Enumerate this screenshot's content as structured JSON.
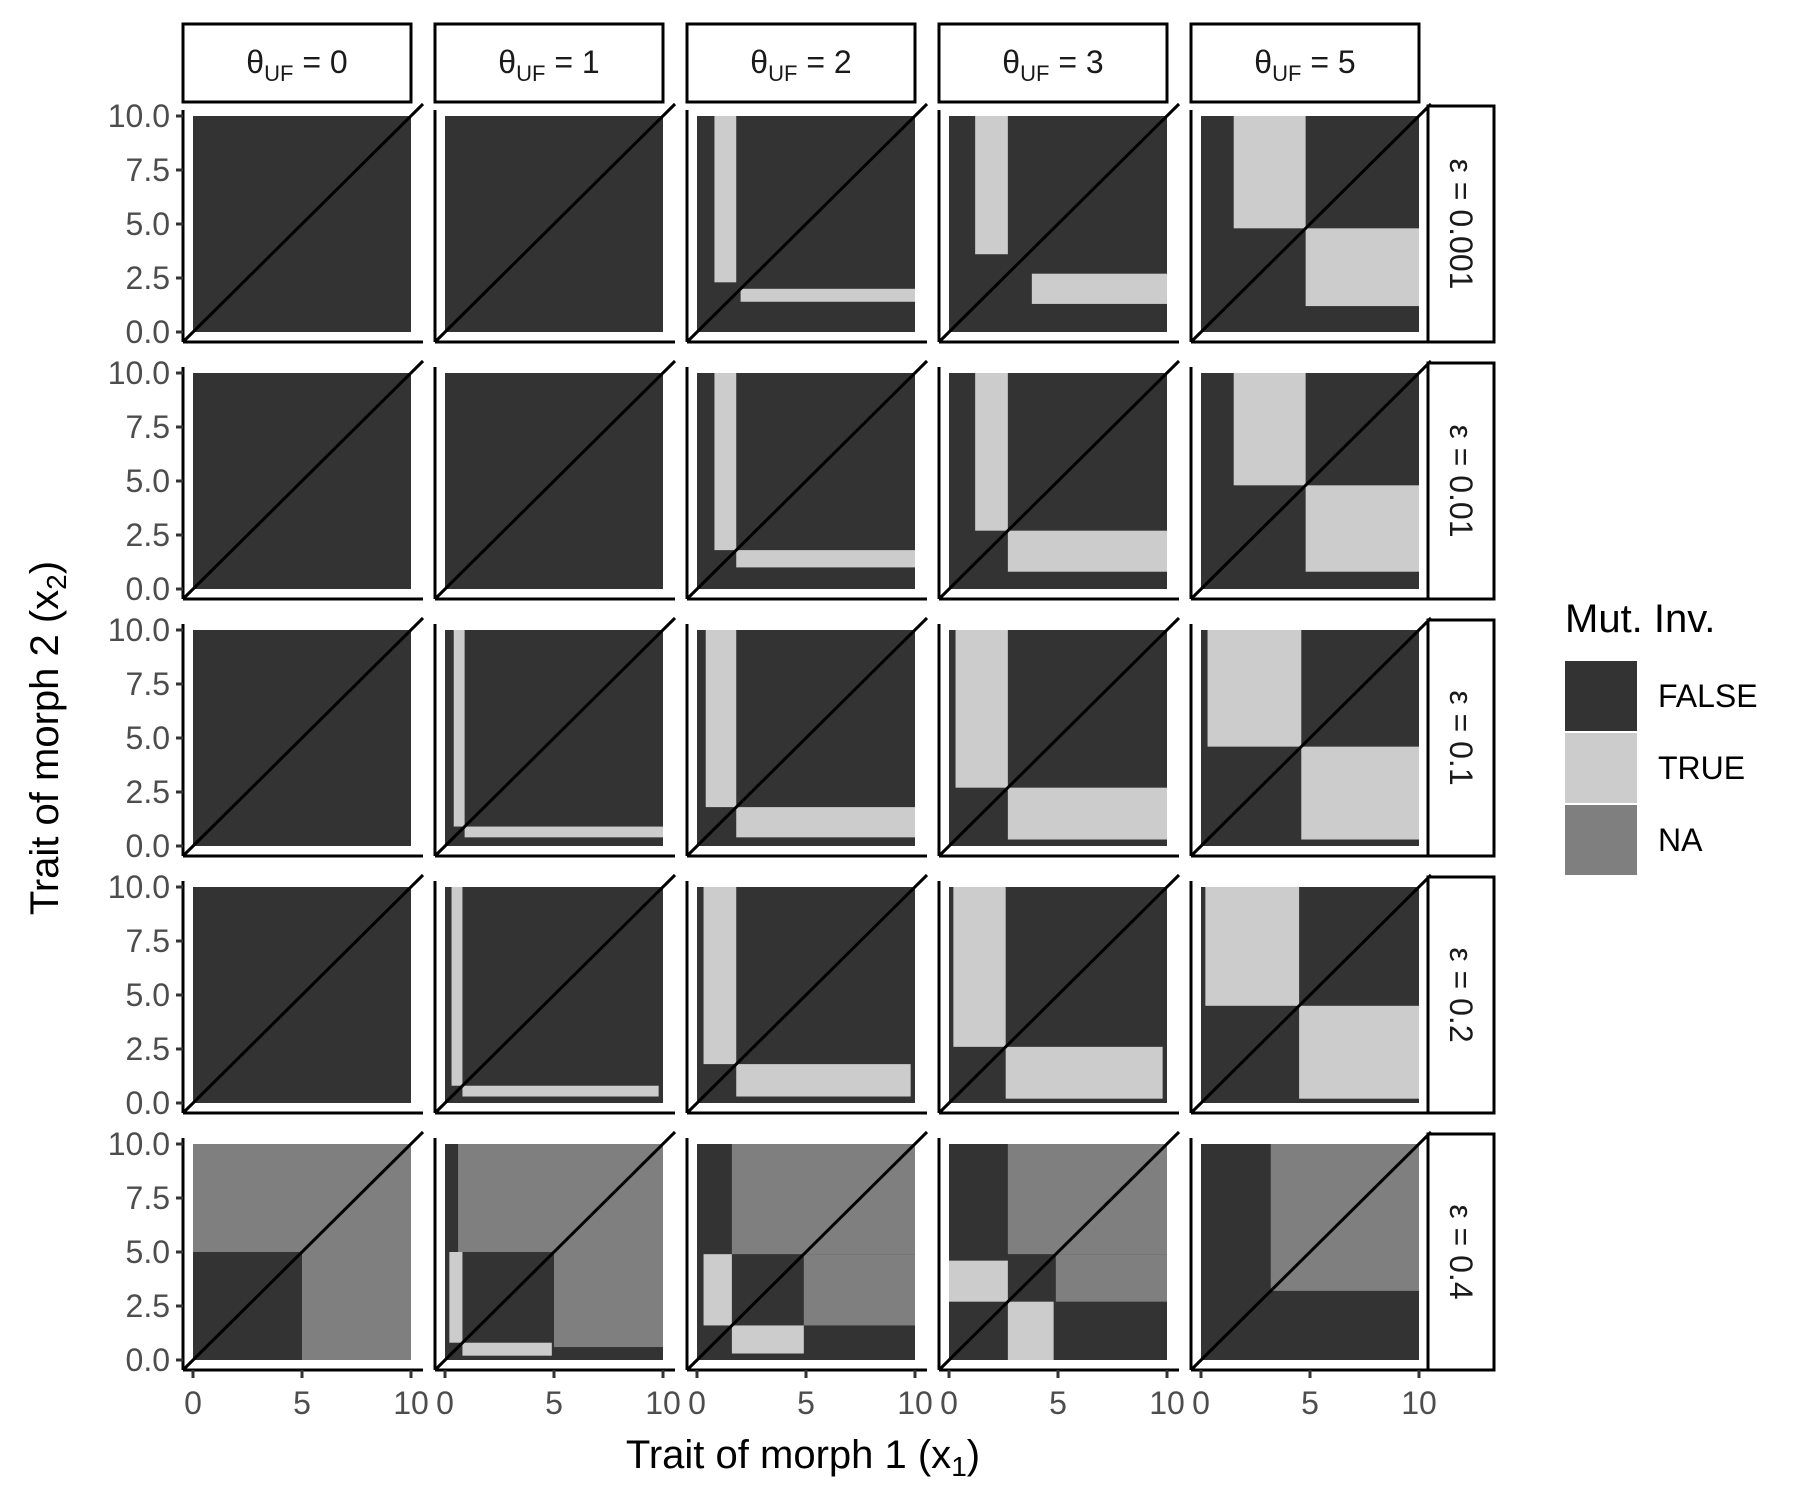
{
  "chart_data": {
    "type": "heatmap",
    "facet_columns": [
      "θUF = 0",
      "θUF = 1",
      "θUF = 2",
      "θUF = 3",
      "θUF = 5"
    ],
    "facet_column_symbol": "θ",
    "facet_column_subscript": "UF",
    "facet_column_values": [
      "0",
      "1",
      "2",
      "3",
      "5"
    ],
    "facet_rows": [
      "ε = 0.001",
      "ε = 0.01",
      "ε = 0.1",
      "ε = 0.2",
      "ε = 0.4"
    ],
    "xlabel": "Trait of morph 1 (x1)",
    "xlabel_main": "Trait of morph 1 (x",
    "xlabel_sub": "1",
    "xlabel_end": ")",
    "ylabel": "Trait of morph 2 (x2)",
    "ylabel_main": "Trait of morph 2 (x",
    "ylabel_sub": "2",
    "ylabel_end": ")",
    "x_ticks": [
      "0",
      "5",
      "10"
    ],
    "y_ticks": [
      "0.0",
      "2.5",
      "5.0",
      "7.5",
      "10.0"
    ],
    "xlim": [
      0,
      10
    ],
    "ylim": [
      0,
      10
    ],
    "legend": {
      "title": "Mut. Inv.",
      "entries": [
        {
          "label": "FALSE",
          "color": "#333333"
        },
        {
          "label": "TRUE",
          "color": "#cccccc"
        },
        {
          "label": "NA",
          "color": "#7f7f7f"
        }
      ],
      "placement": "right"
    },
    "reference_line": "x2 = x1",
    "panels": [
      {
        "row": 0,
        "col": 0,
        "true_regions": [],
        "na_regions": []
      },
      {
        "row": 0,
        "col": 1,
        "true_regions": [],
        "na_regions": []
      },
      {
        "row": 0,
        "col": 2,
        "true_regions": [
          {
            "x": [
              0.8,
              1.8
            ],
            "y": [
              2.3,
              10
            ]
          },
          {
            "x": [
              2.0,
              10
            ],
            "y": [
              1.4,
              2.0
            ]
          }
        ],
        "na_regions": []
      },
      {
        "row": 0,
        "col": 3,
        "true_regions": [
          {
            "x": [
              1.2,
              2.7
            ],
            "y": [
              3.6,
              10
            ]
          },
          {
            "x": [
              3.8,
              10
            ],
            "y": [
              1.3,
              2.7
            ]
          }
        ],
        "na_regions": []
      },
      {
        "row": 0,
        "col": 4,
        "true_regions": [
          {
            "x": [
              1.5,
              4.8
            ],
            "y": [
              4.8,
              10
            ]
          },
          {
            "x": [
              4.8,
              10
            ],
            "y": [
              1.2,
              4.8
            ]
          }
        ],
        "na_regions": []
      },
      {
        "row": 1,
        "col": 0,
        "true_regions": [],
        "na_regions": []
      },
      {
        "row": 1,
        "col": 1,
        "true_regions": [],
        "na_regions": []
      },
      {
        "row": 1,
        "col": 2,
        "true_regions": [
          {
            "x": [
              0.8,
              1.8
            ],
            "y": [
              1.8,
              10
            ]
          },
          {
            "x": [
              1.8,
              10
            ],
            "y": [
              1.0,
              1.8
            ]
          }
        ],
        "na_regions": []
      },
      {
        "row": 1,
        "col": 3,
        "true_regions": [
          {
            "x": [
              1.2,
              2.7
            ],
            "y": [
              2.7,
              10
            ]
          },
          {
            "x": [
              2.7,
              10
            ],
            "y": [
              0.8,
              2.7
            ]
          }
        ],
        "na_regions": []
      },
      {
        "row": 1,
        "col": 4,
        "true_regions": [
          {
            "x": [
              1.5,
              4.8
            ],
            "y": [
              4.8,
              10
            ]
          },
          {
            "x": [
              4.8,
              10
            ],
            "y": [
              0.8,
              4.8
            ]
          }
        ],
        "na_regions": []
      },
      {
        "row": 2,
        "col": 0,
        "true_regions": [],
        "na_regions": []
      },
      {
        "row": 2,
        "col": 1,
        "true_regions": [
          {
            "x": [
              0.4,
              0.9
            ],
            "y": [
              0.9,
              10
            ]
          },
          {
            "x": [
              0.9,
              10
            ],
            "y": [
              0.4,
              0.9
            ]
          }
        ],
        "na_regions": []
      },
      {
        "row": 2,
        "col": 2,
        "true_regions": [
          {
            "x": [
              0.4,
              1.8
            ],
            "y": [
              1.8,
              10
            ]
          },
          {
            "x": [
              1.8,
              10
            ],
            "y": [
              0.4,
              1.8
            ]
          }
        ],
        "na_regions": []
      },
      {
        "row": 2,
        "col": 3,
        "true_regions": [
          {
            "x": [
              0.3,
              2.7
            ],
            "y": [
              2.7,
              10
            ]
          },
          {
            "x": [
              2.7,
              10
            ],
            "y": [
              0.3,
              2.7
            ]
          }
        ],
        "na_regions": []
      },
      {
        "row": 2,
        "col": 4,
        "true_regions": [
          {
            "x": [
              0.3,
              4.6
            ],
            "y": [
              4.6,
              10
            ]
          },
          {
            "x": [
              4.6,
              10
            ],
            "y": [
              0.3,
              4.6
            ]
          }
        ],
        "na_regions": []
      },
      {
        "row": 3,
        "col": 0,
        "true_regions": [],
        "na_regions": []
      },
      {
        "row": 3,
        "col": 1,
        "true_regions": [
          {
            "x": [
              0.3,
              0.8
            ],
            "y": [
              0.8,
              10
            ]
          },
          {
            "x": [
              0.8,
              9.8
            ],
            "y": [
              0.3,
              0.8
            ]
          }
        ],
        "na_regions": []
      },
      {
        "row": 3,
        "col": 2,
        "true_regions": [
          {
            "x": [
              0.3,
              1.8
            ],
            "y": [
              1.8,
              10
            ]
          },
          {
            "x": [
              1.8,
              9.8
            ],
            "y": [
              0.3,
              1.8
            ]
          }
        ],
        "na_regions": []
      },
      {
        "row": 3,
        "col": 3,
        "true_regions": [
          {
            "x": [
              0.2,
              2.6
            ],
            "y": [
              2.6,
              10
            ]
          },
          {
            "x": [
              2.6,
              9.8
            ],
            "y": [
              0.2,
              2.6
            ]
          }
        ],
        "na_regions": []
      },
      {
        "row": 3,
        "col": 4,
        "true_regions": [
          {
            "x": [
              0.2,
              4.5
            ],
            "y": [
              4.5,
              10
            ]
          },
          {
            "x": [
              4.5,
              10
            ],
            "y": [
              0.2,
              4.5
            ]
          }
        ],
        "na_regions": []
      },
      {
        "row": 4,
        "col": 0,
        "true_regions": [],
        "na_regions": [
          {
            "x": [
              0,
              10
            ],
            "y": [
              5,
              10
            ]
          },
          {
            "x": [
              5,
              10
            ],
            "y": [
              0,
              5
            ]
          }
        ]
      },
      {
        "row": 4,
        "col": 1,
        "true_regions": [
          {
            "x": [
              0.2,
              0.8
            ],
            "y": [
              0.8,
              5.0
            ]
          },
          {
            "x": [
              0.8,
              4.9
            ],
            "y": [
              0.2,
              0.8
            ]
          }
        ],
        "na_regions": [
          {
            "x": [
              0.6,
              10
            ],
            "y": [
              5,
              10
            ]
          },
          {
            "x": [
              5,
              10
            ],
            "y": [
              0.6,
              5
            ]
          }
        ]
      },
      {
        "row": 4,
        "col": 2,
        "true_regions": [
          {
            "x": [
              0.3,
              1.6
            ],
            "y": [
              1.6,
              4.9
            ]
          },
          {
            "x": [
              1.6,
              4.9
            ],
            "y": [
              0.3,
              1.6
            ]
          }
        ],
        "na_regions": [
          {
            "x": [
              1.6,
              10
            ],
            "y": [
              4.9,
              10
            ]
          },
          {
            "x": [
              4.9,
              10
            ],
            "y": [
              1.6,
              4.9
            ]
          }
        ]
      },
      {
        "row": 4,
        "col": 3,
        "true_regions": [
          {
            "x": [
              0,
              2.7
            ],
            "y": [
              2.7,
              4.6
            ]
          },
          {
            "x": [
              2.7,
              4.8
            ],
            "y": [
              0,
              2.7
            ]
          }
        ],
        "na_regions": [
          {
            "x": [
              2.7,
              10
            ],
            "y": [
              4.9,
              10
            ]
          },
          {
            "x": [
              4.9,
              10
            ],
            "y": [
              2.7,
              4.9
            ]
          }
        ]
      },
      {
        "row": 4,
        "col": 4,
        "true_regions": [],
        "na_regions": [
          {
            "x": [
              3.2,
              10
            ],
            "y": [
              3.2,
              10
            ]
          }
        ]
      }
    ]
  }
}
